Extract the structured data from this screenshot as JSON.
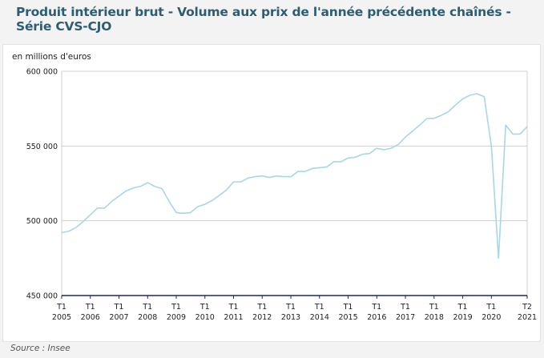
{
  "title": "Produit intérieur brut - Volume aux prix de l'année précédente chaînés - Série CVS-CJO",
  "source": "Source : Insee",
  "colors": {
    "line": "#a7d7e7",
    "grid": "#cfcfcf",
    "axis": "#1f2a5a",
    "title": "#2e5c73"
  },
  "chart_data": {
    "type": "line",
    "title": "Produit intérieur brut - Volume aux prix de l'année précédente chaînés - Série CVS-CJO",
    "ylabel": "en millions d'euros",
    "ylim": [
      450000,
      600000
    ],
    "yticks": [
      450000,
      500000,
      550000,
      600000
    ],
    "ytick_labels": [
      "450 000",
      "500 000",
      "550 000",
      "600 000"
    ],
    "xtick_labels": [
      [
        "T1",
        "2005"
      ],
      [
        "T1",
        "2006"
      ],
      [
        "T1",
        "2007"
      ],
      [
        "T1",
        "2008"
      ],
      [
        "T1",
        "2009"
      ],
      [
        "T1",
        "2010"
      ],
      [
        "T1",
        "2011"
      ],
      [
        "T1",
        "2012"
      ],
      [
        "T1",
        "2013"
      ],
      [
        "T1",
        "2014"
      ],
      [
        "T1",
        "2015"
      ],
      [
        "T1",
        "2016"
      ],
      [
        "T1",
        "2017"
      ],
      [
        "T1",
        "2018"
      ],
      [
        "T1",
        "2019"
      ],
      [
        "T1",
        "2020"
      ],
      [
        "T2",
        "2021"
      ]
    ],
    "grid": true,
    "series": [
      {
        "values": [
          492000,
          493000,
          495500,
          499500,
          504000,
          508500,
          508500,
          513000,
          516500,
          520000,
          522000,
          523000,
          525500,
          523000,
          521500,
          513000,
          505500,
          505000,
          505500,
          509500,
          511000,
          513500,
          517000,
          520500,
          526000,
          526000,
          528500,
          529500,
          530000,
          529000,
          530000,
          529500,
          529500,
          533000,
          533000,
          535000,
          535500,
          536000,
          539500,
          539500,
          542000,
          542500,
          544500,
          545000,
          548500,
          547500,
          548500,
          551000,
          556000,
          560000,
          564000,
          568500,
          568500,
          570500,
          573000,
          577500,
          581500,
          584000,
          585000,
          583000,
          550000,
          475000,
          564000,
          558000,
          558000,
          563000
        ],
        "x": [
          "2005-T1",
          "2005-T2",
          "2005-T3",
          "2005-T4",
          "2006-T1",
          "2006-T2",
          "2006-T3",
          "2006-T4",
          "2007-T1",
          "2007-T2",
          "2007-T3",
          "2007-T4",
          "2008-T1",
          "2008-T2",
          "2008-T3",
          "2008-T4",
          "2009-T1",
          "2009-T2",
          "2009-T3",
          "2009-T4",
          "2010-T1",
          "2010-T2",
          "2010-T3",
          "2010-T4",
          "2011-T1",
          "2011-T2",
          "2011-T3",
          "2011-T4",
          "2012-T1",
          "2012-T2",
          "2012-T3",
          "2012-T4",
          "2013-T1",
          "2013-T2",
          "2013-T3",
          "2013-T4",
          "2014-T1",
          "2014-T2",
          "2014-T3",
          "2014-T4",
          "2015-T1",
          "2015-T2",
          "2015-T3",
          "2015-T4",
          "2016-T1",
          "2016-T2",
          "2016-T3",
          "2016-T4",
          "2017-T1",
          "2017-T2",
          "2017-T3",
          "2017-T4",
          "2018-T1",
          "2018-T2",
          "2018-T3",
          "2018-T4",
          "2019-T1",
          "2019-T2",
          "2019-T3",
          "2019-T4",
          "2020-T1",
          "2020-T2",
          "2020-T3",
          "2020-T4",
          "2021-T1",
          "2021-T2"
        ]
      }
    ]
  }
}
